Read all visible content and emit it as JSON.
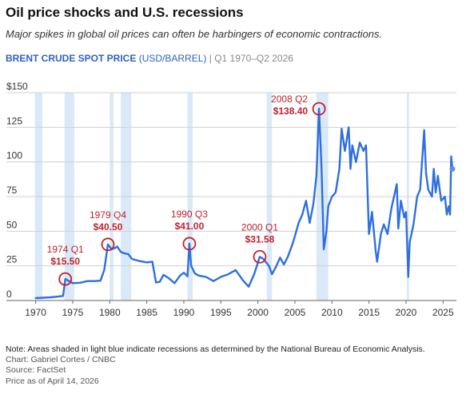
{
  "header": {
    "title": "Oil price shocks and U.S. recessions",
    "subtitle": "Major spikes in global oil prices can often be harbingers of economic contractions.",
    "series_label": "BRENT CRUDE SPOT PRICE",
    "series_unit": "(USD/BARREL)",
    "separator": "|",
    "date_range": "Q1 1970–Q2 2026"
  },
  "footer": {
    "note": "Note: Areas shaded in light blue indicate recessions as determined by the National Bureau of Economic Analysis.",
    "chart_credit": "Chart: Gabriel Cortes / CNBC",
    "source": "Source: FactSet",
    "as_of": "Price as of April 14, 2026"
  },
  "colors": {
    "line": "#2f6fe0",
    "recession": "#d9e9f7",
    "annotation": "#c0202e",
    "grid": "#d0d0d0"
  },
  "chart_data": {
    "type": "line",
    "xlim": [
      1969.5,
      2026.8
    ],
    "ylim": [
      0,
      150
    ],
    "x_ticks": [
      1970,
      1975,
      1980,
      1985,
      1990,
      1995,
      2000,
      2005,
      2010,
      2015,
      2020,
      2025
    ],
    "x_tick_labels": [
      "1970",
      "1975",
      "1980",
      "1985",
      "1990",
      "1995",
      "2000",
      "2005",
      "2010",
      "2015",
      "2020",
      "2025"
    ],
    "y_ticks": [
      0,
      25,
      50,
      75,
      100,
      125,
      150
    ],
    "y_tick_labels": [
      "0",
      "25",
      "50",
      "75",
      "100",
      "125",
      "$150"
    ],
    "grid": "horizontal",
    "recessions": [
      [
        1969.9,
        1970.9
      ],
      [
        1973.9,
        1975.2
      ],
      [
        1980.0,
        1980.5
      ],
      [
        1981.5,
        1982.9
      ],
      [
        1990.5,
        1991.2
      ],
      [
        2001.2,
        2001.9
      ],
      [
        2007.9,
        2009.5
      ],
      [
        2020.1,
        2020.4
      ]
    ],
    "series": [
      {
        "values": [
          [
            1970.0,
            1.8
          ],
          [
            1971.0,
            2.0
          ],
          [
            1972.0,
            2.3
          ],
          [
            1973.0,
            2.8
          ],
          [
            1973.7,
            3.3
          ],
          [
            1974.0,
            15.5
          ],
          [
            1975.0,
            12.5
          ],
          [
            1976.0,
            12.8
          ],
          [
            1977.0,
            14.0
          ],
          [
            1978.0,
            14.0
          ],
          [
            1978.75,
            14.3
          ],
          [
            1979.25,
            22.0
          ],
          [
            1979.75,
            40.5
          ],
          [
            1980.25,
            37.0
          ],
          [
            1980.75,
            38.0
          ],
          [
            1981.0,
            39.0
          ],
          [
            1981.5,
            35.0
          ],
          [
            1982.0,
            34.0
          ],
          [
            1982.5,
            33.5
          ],
          [
            1983.0,
            30.0
          ],
          [
            1984.0,
            28.5
          ],
          [
            1985.0,
            27.5
          ],
          [
            1985.75,
            28.0
          ],
          [
            1986.25,
            13.0
          ],
          [
            1986.75,
            13.5
          ],
          [
            1987.25,
            18.5
          ],
          [
            1988.0,
            16.0
          ],
          [
            1988.75,
            12.5
          ],
          [
            1989.5,
            18.0
          ],
          [
            1990.0,
            20.0
          ],
          [
            1990.5,
            17.5
          ],
          [
            1990.75,
            41.0
          ],
          [
            1991.0,
            25.0
          ],
          [
            1991.5,
            19.5
          ],
          [
            1992.0,
            18.0
          ],
          [
            1993.0,
            17.0
          ],
          [
            1994.0,
            14.0
          ],
          [
            1995.0,
            17.0
          ],
          [
            1996.0,
            19.0
          ],
          [
            1997.0,
            22.0
          ],
          [
            1998.0,
            14.5
          ],
          [
            1998.75,
            10.0
          ],
          [
            1999.5,
            19.0
          ],
          [
            2000.25,
            31.58
          ],
          [
            2000.75,
            30.0
          ],
          [
            2001.5,
            25.0
          ],
          [
            2001.9,
            19.0
          ],
          [
            2002.5,
            25.0
          ],
          [
            2003.0,
            31.0
          ],
          [
            2003.5,
            26.0
          ],
          [
            2004.0,
            31.0
          ],
          [
            2004.75,
            42.0
          ],
          [
            2005.5,
            56.0
          ],
          [
            2006.0,
            62.0
          ],
          [
            2006.5,
            72.0
          ],
          [
            2007.0,
            56.0
          ],
          [
            2007.5,
            70.0
          ],
          [
            2007.9,
            90.0
          ],
          [
            2008.25,
            138.4
          ],
          [
            2008.6,
            95.0
          ],
          [
            2008.9,
            37.0
          ],
          [
            2009.25,
            50.0
          ],
          [
            2009.5,
            68.0
          ],
          [
            2010.0,
            75.0
          ],
          [
            2010.5,
            78.0
          ],
          [
            2011.0,
            95.0
          ],
          [
            2011.3,
            124.0
          ],
          [
            2011.75,
            108.0
          ],
          [
            2012.25,
            125.0
          ],
          [
            2012.5,
            95.0
          ],
          [
            2012.75,
            112.0
          ],
          [
            2013.25,
            100.0
          ],
          [
            2013.75,
            114.0
          ],
          [
            2014.25,
            108.0
          ],
          [
            2014.6,
            112.0
          ],
          [
            2015.0,
            48.0
          ],
          [
            2015.4,
            64.0
          ],
          [
            2015.9,
            36.0
          ],
          [
            2016.1,
            28.0
          ],
          [
            2016.6,
            48.0
          ],
          [
            2017.0,
            55.0
          ],
          [
            2017.5,
            48.0
          ],
          [
            2018.0,
            66.0
          ],
          [
            2018.75,
            84.0
          ],
          [
            2018.95,
            52.0
          ],
          [
            2019.3,
            72.0
          ],
          [
            2019.75,
            60.0
          ],
          [
            2020.0,
            64.0
          ],
          [
            2020.3,
            17.0
          ],
          [
            2020.5,
            42.0
          ],
          [
            2021.0,
            55.0
          ],
          [
            2021.5,
            75.0
          ],
          [
            2021.9,
            80.0
          ],
          [
            2022.45,
            123.0
          ],
          [
            2022.7,
            92.0
          ],
          [
            2023.0,
            80.0
          ],
          [
            2023.5,
            75.0
          ],
          [
            2023.75,
            95.0
          ],
          [
            2024.0,
            78.0
          ],
          [
            2024.3,
            90.0
          ],
          [
            2024.75,
            72.0
          ],
          [
            2025.25,
            75.0
          ],
          [
            2025.5,
            62.0
          ],
          [
            2025.75,
            68.0
          ],
          [
            2025.95,
            62.0
          ],
          [
            2026.1,
            104.0
          ],
          [
            2026.25,
            95.0
          ]
        ]
      }
    ],
    "annotations": [
      {
        "x": 1974.0,
        "y": 15.5,
        "label": "1974 Q1",
        "value": "$15.50"
      },
      {
        "x": 1979.75,
        "y": 40.5,
        "label": "1979 Q4",
        "value": "$40.50"
      },
      {
        "x": 1990.75,
        "y": 41.0,
        "label": "1990 Q3",
        "value": "$41.00"
      },
      {
        "x": 2000.25,
        "y": 31.58,
        "label": "2000 Q1",
        "value": "$31.58"
      },
      {
        "x": 2008.25,
        "y": 138.4,
        "label": "2008 Q2",
        "value": "$138.40"
      }
    ],
    "last_point": {
      "x": 2026.25,
      "y": 95.0
    }
  }
}
